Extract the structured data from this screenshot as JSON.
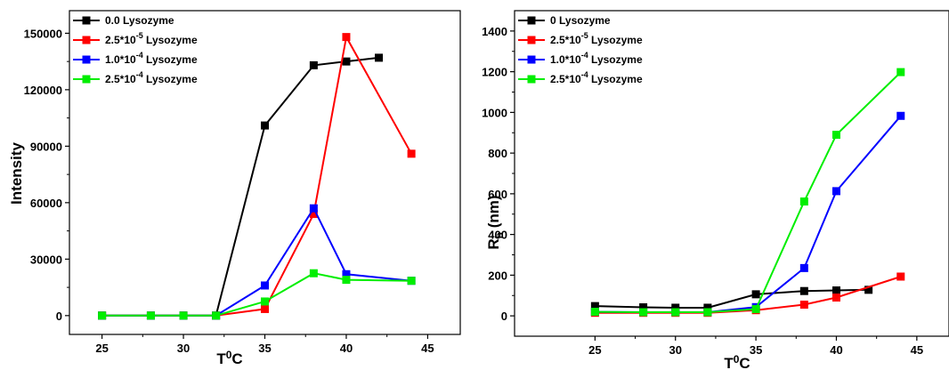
{
  "chart_data": [
    {
      "type": "line",
      "title": "",
      "xlabel": {
        "base": "T",
        "sup": "0",
        "after": "C"
      },
      "ylabel": "Intensity",
      "xlim": [
        23,
        47
      ],
      "ylim": [
        -10000,
        162000
      ],
      "xticks": [
        25,
        30,
        35,
        40,
        45
      ],
      "yticks": [
        0,
        30000,
        60000,
        90000,
        120000,
        150000
      ],
      "grid": false,
      "legend_position": "top-left",
      "series": [
        {
          "name": {
            "base": "0.0  Lysozyme"
          },
          "color": "#000000",
          "x": [
            25,
            28,
            30,
            32,
            35,
            38,
            40,
            42
          ],
          "y": [
            0,
            0,
            0,
            0,
            101000,
            133000,
            135000,
            137000
          ]
        },
        {
          "name": {
            "base": "2.5*10",
            "sup": "-5",
            "after": " Lysozyme"
          },
          "color": "#ff0000",
          "x": [
            25,
            28,
            30,
            32,
            35,
            38,
            40,
            44
          ],
          "y": [
            0,
            0,
            0,
            0,
            3500,
            54000,
            148000,
            86000
          ]
        },
        {
          "name": {
            "base": "1.0*10",
            "sup": "-4",
            "after": "  Lysozyme"
          },
          "color": "#0000ff",
          "x": [
            25,
            28,
            30,
            32,
            35,
            38,
            40,
            44
          ],
          "y": [
            0,
            0,
            0,
            0,
            16000,
            57000,
            22000,
            18500
          ]
        },
        {
          "name": {
            "base": "2.5*10",
            "sup": "-4",
            "after": "  Lysozyme"
          },
          "color": "#00ee00",
          "x": [
            25,
            28,
            30,
            32,
            35,
            38,
            40,
            44
          ],
          "y": [
            0,
            0,
            0,
            0,
            7500,
            22500,
            19000,
            18500
          ]
        }
      ]
    },
    {
      "type": "line",
      "title": "",
      "xlabel": {
        "base": "T",
        "sup": "0",
        "after": "C"
      },
      "ylabel": {
        "base": "R",
        "sub": "h",
        "after": " (nm)"
      },
      "xlim": [
        20,
        47
      ],
      "ylim": [
        -100,
        1500
      ],
      "xticks": [
        25,
        30,
        35,
        40,
        45
      ],
      "yticks": [
        0,
        200,
        400,
        600,
        800,
        1000,
        1200,
        1400
      ],
      "grid": false,
      "legend_position": "top-left",
      "series": [
        {
          "name": {
            "base": "0 Lysozyme"
          },
          "color": "#000000",
          "x": [
            25,
            28,
            30,
            32,
            35,
            38,
            40,
            42
          ],
          "y": [
            48,
            42,
            40,
            40,
            106,
            122,
            125,
            128
          ]
        },
        {
          "name": {
            "base": "2.5*10",
            "sup": "-5",
            "after": " Lysozyme"
          },
          "color": "#ff0000",
          "x": [
            25,
            28,
            30,
            32,
            35,
            38,
            40,
            44
          ],
          "y": [
            15,
            15,
            15,
            15,
            28,
            55,
            90,
            193
          ]
        },
        {
          "name": {
            "base": "1.0*10",
            "sup": "-4",
            "after": " Lysozyme"
          },
          "color": "#0000ff",
          "x": [
            25,
            28,
            30,
            32,
            35,
            38,
            40,
            44
          ],
          "y": [
            20,
            18,
            18,
            18,
            43,
            235,
            613,
            983
          ]
        },
        {
          "name": {
            "base": "2.5*10",
            "sup": "-4",
            "after": " Lysozyme"
          },
          "color": "#00ee00",
          "x": [
            25,
            28,
            30,
            32,
            35,
            38,
            40,
            44
          ],
          "y": [
            20,
            18,
            18,
            18,
            33,
            562,
            890,
            1198
          ]
        }
      ]
    }
  ]
}
